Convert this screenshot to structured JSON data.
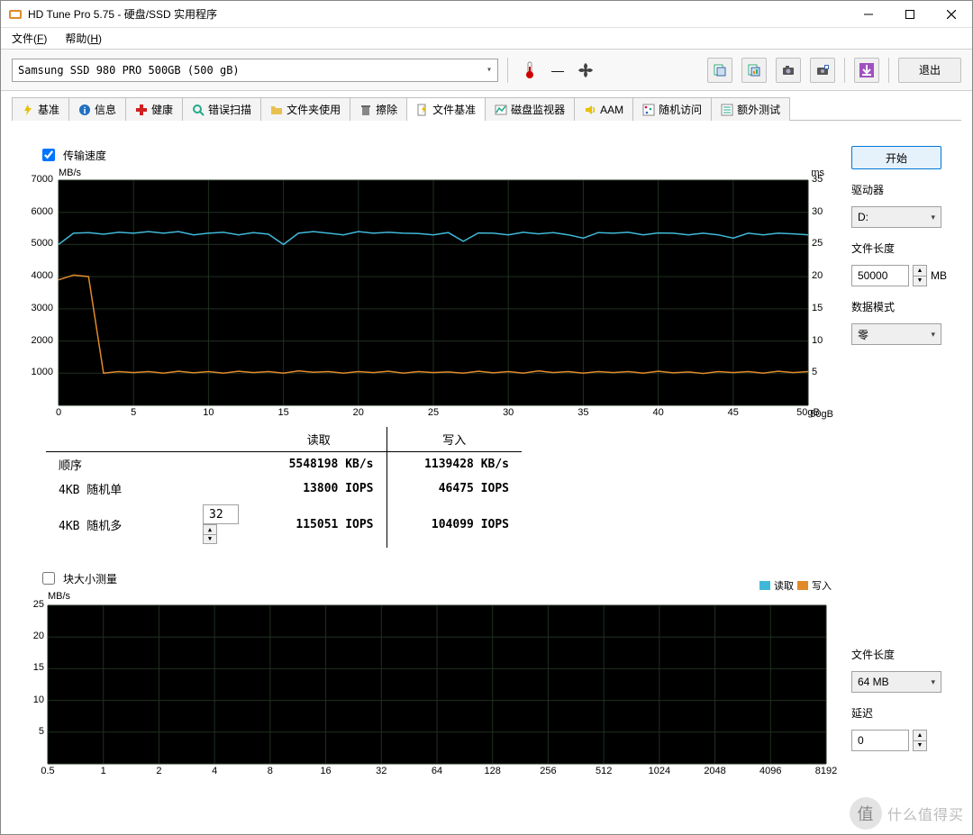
{
  "window": {
    "title": "HD Tune Pro 5.75 - 硬盘/SSD 实用程序"
  },
  "menus": {
    "file": "文件",
    "file_key": "F",
    "help": "帮助",
    "help_key": "H"
  },
  "toolbar": {
    "drive_selected": "Samsung SSD 980 PRO 500GB (500 gB)",
    "exit_label": "退出"
  },
  "tabs": [
    {
      "id": "benchmark",
      "label": "基准"
    },
    {
      "id": "info",
      "label": "信息"
    },
    {
      "id": "health",
      "label": "健康"
    },
    {
      "id": "errorscan",
      "label": "错误扫描"
    },
    {
      "id": "folderusage",
      "label": "文件夹使用"
    },
    {
      "id": "erase",
      "label": "擦除"
    },
    {
      "id": "filebench",
      "label": "文件基准",
      "active": true
    },
    {
      "id": "diskmon",
      "label": "磁盘监视器"
    },
    {
      "id": "aam",
      "label": "AAM"
    },
    {
      "id": "random",
      "label": "随机访问"
    },
    {
      "id": "extra",
      "label": "额外测试"
    }
  ],
  "filebench": {
    "transfer_checkbox_label": "传输速度",
    "transfer_checked": true,
    "block_checkbox_label": "块大小测量",
    "block_checked": false,
    "start_label": "开始",
    "driver_label": "驱动器",
    "driver_value": "D:",
    "filelen_label": "文件长度",
    "filelen_value": "50000",
    "filelen_unit": "MB",
    "datamode_label": "数据模式",
    "datamode_value": "零",
    "filelen2_value": "64 MB",
    "delay_label": "延迟",
    "delay_value": "0",
    "chart1": {
      "y_unit_left": "MB/s",
      "y_unit_right": "ms",
      "x_unit": "gB",
      "xlim": [
        0,
        50
      ],
      "ylim_left": [
        0,
        7000
      ],
      "ylim_right": [
        0,
        35
      ],
      "yticks_left": [
        0,
        1000,
        2000,
        3000,
        4000,
        5000,
        6000,
        7000
      ],
      "yticks_right": [
        0,
        5,
        10,
        15,
        20,
        25,
        30,
        35
      ],
      "xticks": [
        0,
        5,
        10,
        15,
        20,
        25,
        30,
        35,
        40,
        45,
        50
      ],
      "grid_color": "#203020",
      "bg_color": "#000000",
      "read_color": "#3fb8d8",
      "write_color": "#e08a2a",
      "read_series_y": [
        5000,
        5350,
        5370,
        5320,
        5380,
        5350,
        5400,
        5350,
        5400,
        5300,
        5350,
        5380,
        5300,
        5370,
        5320,
        5000,
        5350,
        5400,
        5350,
        5300,
        5400,
        5350,
        5380,
        5350,
        5340,
        5300,
        5370,
        5100,
        5360,
        5350,
        5300,
        5380,
        5330,
        5370,
        5300,
        5200,
        5370,
        5350,
        5380,
        5300,
        5360,
        5350,
        5300,
        5350,
        5300,
        5200,
        5350,
        5300,
        5350,
        5330,
        5300
      ],
      "write_series_y": [
        3900,
        4050,
        4000,
        1000,
        1050,
        1020,
        1050,
        1000,
        1060,
        1010,
        1050,
        1000,
        1060,
        1020,
        1050,
        1000,
        1070,
        1030,
        1050,
        1000,
        1050,
        1020,
        1060,
        1000,
        1050,
        1020,
        1040,
        1000,
        1060,
        1010,
        1050,
        1000,
        1070,
        1020,
        1050,
        1000,
        1050,
        1020,
        1050,
        1000,
        1060,
        1010,
        1040,
        990,
        1050,
        1020,
        1050,
        1000,
        1060,
        1020,
        1050
      ]
    },
    "results": {
      "header_read": "读取",
      "header_write": "写入",
      "rows": [
        {
          "label": "顺序",
          "read": "5548198 KB/s",
          "write": "1139428 KB/s"
        },
        {
          "label": "4KB 随机单",
          "read": "13800 IOPS",
          "write": "46475 IOPS"
        },
        {
          "label": "4KB 随机多",
          "read": "115051 IOPS",
          "write": "104099 IOPS"
        }
      ],
      "queue_depth": "32"
    },
    "chart2": {
      "y_unit_left": "MB/s",
      "xlim": [
        0.5,
        8192
      ],
      "ylim_left": [
        0,
        25
      ],
      "yticks_left": [
        0,
        5,
        10,
        15,
        20,
        25
      ],
      "xticks": [
        "0.5",
        "1",
        "2",
        "4",
        "8",
        "16",
        "32",
        "64",
        "128",
        "256",
        "512",
        "1024",
        "2048",
        "4096",
        "8192"
      ],
      "grid_color": "#203020",
      "bg_color": "#000000",
      "legend_read": "读取",
      "legend_write": "写入",
      "read_color": "#3fb8d8",
      "write_color": "#e08a2a"
    }
  },
  "watermark": {
    "badge": "值",
    "text": "什么值得买"
  }
}
